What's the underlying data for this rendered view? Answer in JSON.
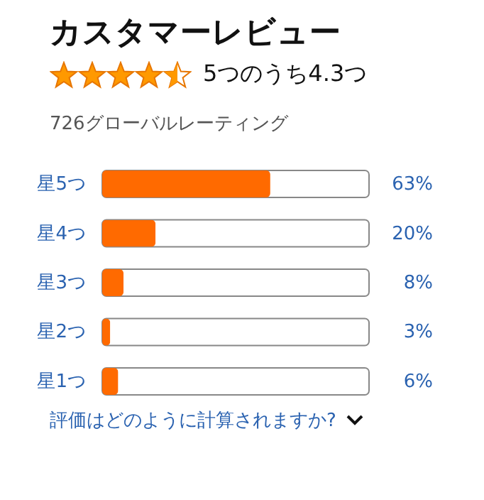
{
  "chart_data": {
    "type": "bar",
    "orientation": "horizontal",
    "title": "カスタマーレビュー",
    "subtitle": "726グローバルレーティング",
    "annotations": [
      "5つのうち4.3つ",
      "評価はどのように計算されますか?"
    ],
    "categories": [
      "星5つ",
      "星4つ",
      "星3つ",
      "星2つ",
      "星1つ"
    ],
    "values": [
      63,
      20,
      8,
      3,
      6
    ],
    "value_labels": [
      "63%",
      "20%",
      "8%",
      "3%",
      "6%"
    ],
    "color": "#ff6a00",
    "xlim": [
      0,
      100
    ],
    "tick_labels": "y"
  }
}
